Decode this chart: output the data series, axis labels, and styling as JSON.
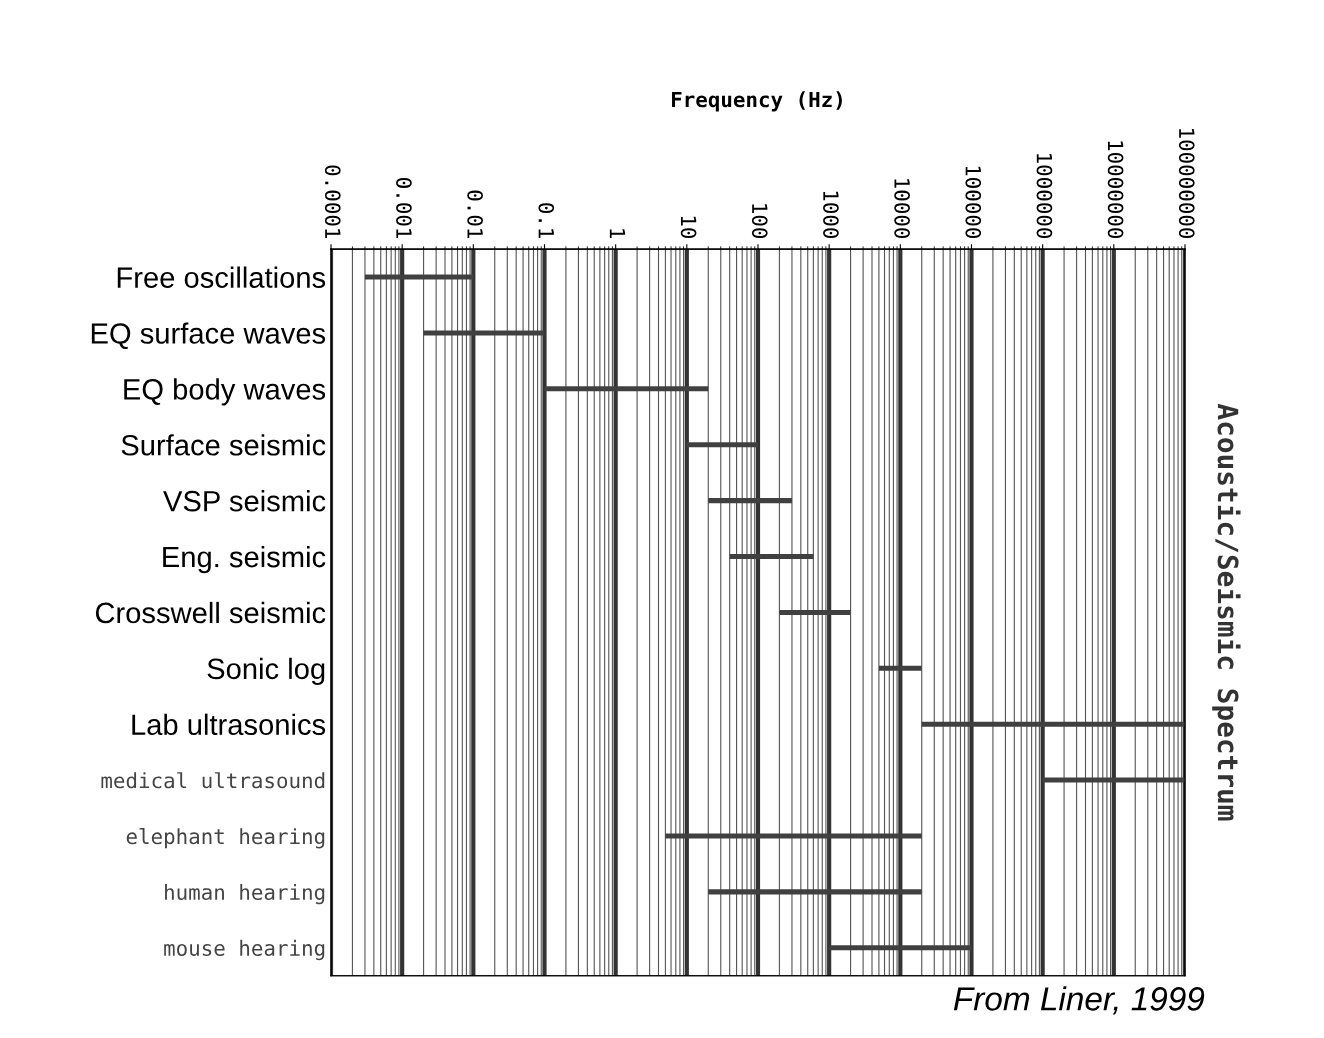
{
  "chart_data": {
    "type": "bar",
    "orientation": "horizontal",
    "log": "x",
    "xlabel": "Frequency (Hz)",
    "y2label": "Acoustic/Seismic Spectrum",
    "categories": [
      "Free oscillations",
      "EQ surface waves",
      "EQ body waves",
      "Surface seismic",
      "VSP seismic",
      "Eng. seismic",
      "Crosswell seismic",
      "Sonic log",
      "Lab ultrasonics",
      "medical ultrasound",
      "elephant hearing",
      "human hearing",
      "mouse hearing"
    ],
    "base": [
      0.0003,
      0.002,
      0.1,
      10,
      20,
      40,
      200,
      5000,
      20000,
      1000000,
      5,
      20,
      1000
    ],
    "values": [
      0.0097,
      0.098,
      19.9,
      90,
      280,
      560,
      1800,
      15000,
      99980000,
      99000000,
      19995,
      19980,
      99000
    ],
    "color": "#404040",
    "xlim": [
      0.0001,
      100000000
    ],
    "xticks": [
      {
        "value": 0.0001,
        "label": "0.0001"
      },
      {
        "value": 0.001,
        "label": "0.001"
      },
      {
        "value": 0.01,
        "label": "0.01"
      },
      {
        "value": 0.1,
        "label": "0.1"
      },
      1,
      10,
      100,
      1000,
      10000,
      100000,
      1000000,
      10000000,
      100000000
    ],
    "grid": "x",
    "annotations": [
      "From Liner, 1999"
    ]
  }
}
